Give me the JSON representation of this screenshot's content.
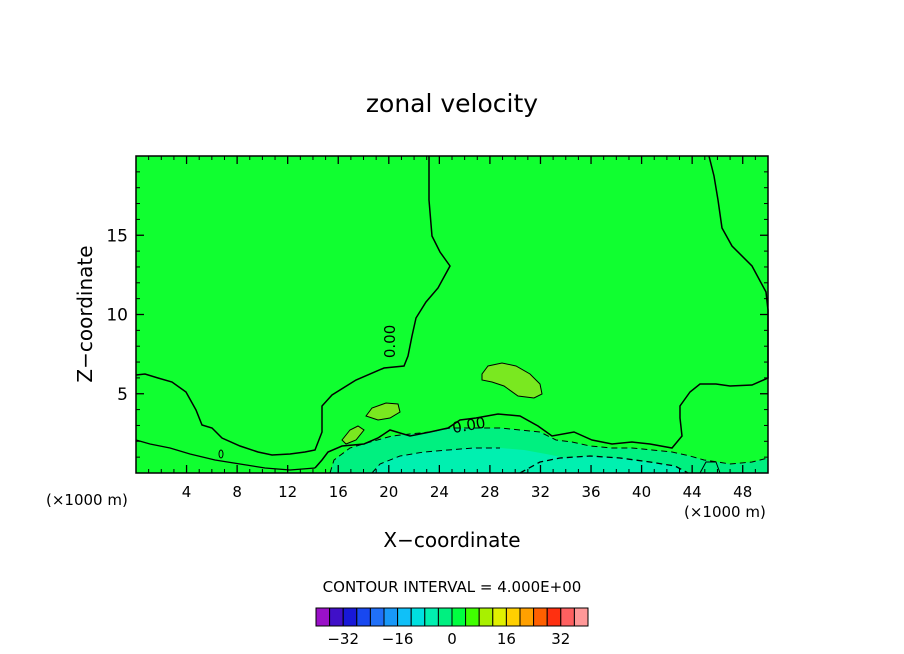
{
  "chart_data": {
    "type": "heatmap",
    "title": "zonal velocity",
    "xlabel": "X−coordinate",
    "ylabel": "Z−coordinate",
    "x_unit": "(×1000 m)",
    "x_unit_right": "(×1000 m)",
    "xlim": [
      0,
      50
    ],
    "ylim": [
      0,
      20
    ],
    "x_ticks": [
      4,
      8,
      12,
      16,
      20,
      24,
      28,
      32,
      36,
      40,
      44,
      48
    ],
    "y_ticks": [
      5,
      10,
      15
    ],
    "contour_labels": [
      {
        "text": "0.00",
        "x": 20.5,
        "y": 8.3,
        "angle": -90
      },
      {
        "text": "0.00",
        "x": 26.4,
        "y": 2.7,
        "angle": -10
      }
    ],
    "contour_interval_text": "CONTOUR INTERVAL =  4.000E+00",
    "colorbar": {
      "levels": [
        -36,
        -32,
        -28,
        -24,
        -20,
        -16,
        -12,
        -8,
        -4,
        0,
        4,
        8,
        12,
        16,
        20,
        24,
        28,
        32,
        36
      ],
      "colors": [
        "#9a10c8",
        "#4010c8",
        "#1818d8",
        "#1848f0",
        "#2070f8",
        "#1898f8",
        "#10c0f8",
        "#00e0e0",
        "#00f0b0",
        "#00f080",
        "#00ff40",
        "#40ff00",
        "#a8f000",
        "#e0f000",
        "#ffd000",
        "#ffa000",
        "#ff6000",
        "#ff3010",
        "#ff6060",
        "#ff9898"
      ],
      "tick_labels": [
        {
          "value": -32,
          "text": "−32"
        },
        {
          "value": -16,
          "text": "−16"
        },
        {
          "value": 0,
          "text": "0"
        },
        {
          "value": 16,
          "text": "16"
        },
        {
          "value": 32,
          "text": "32"
        }
      ]
    },
    "field_colors": {
      "range_0_4": "#10ff30",
      "range_4_8": "#40ff00",
      "range_8_12": "#7ae820",
      "range_neg4_0": "#00f080",
      "range_neg8_neg4": "#00f0b0"
    }
  }
}
